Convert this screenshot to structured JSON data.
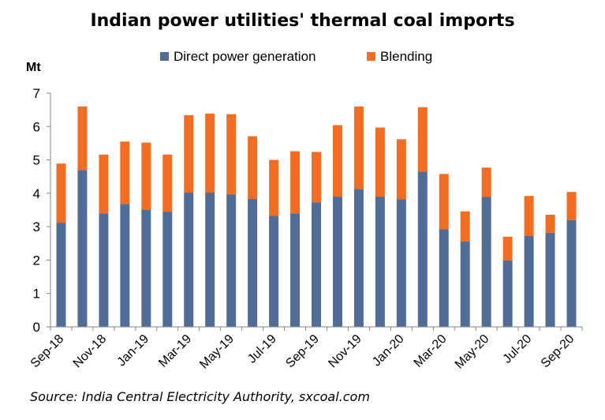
{
  "chart_data": {
    "type": "bar",
    "stacked": true,
    "title": "Indian power utilities'  thermal coal imports",
    "ylabel": "Mt",
    "xlabel": "",
    "ylim": [
      0,
      7
    ],
    "yticks": [
      0,
      1,
      2,
      3,
      4,
      5,
      6,
      7
    ],
    "grid": false,
    "legend_position": "top",
    "categories": [
      "Sep-18",
      "Oct-18",
      "Nov-18",
      "Dec-18",
      "Jan-19",
      "Feb-19",
      "Mar-19",
      "Apr-19",
      "May-19",
      "Jun-19",
      "Jul-19",
      "Aug-19",
      "Sep-19",
      "Oct-19",
      "Nov-19",
      "Dec-19",
      "Jan-20",
      "Feb-20",
      "Mar-20",
      "Apr-20",
      "May-20",
      "Jun-20",
      "Jul-20",
      "Aug-20",
      "Sep-20"
    ],
    "tick_labels": [
      "Sep-18",
      "Nov-18",
      "Jan-19",
      "Mar-19",
      "May-19",
      "Jul-19",
      "Sep-19",
      "Nov-19",
      "Jan-20",
      "Mar-20",
      "May-20",
      "Jul-20",
      "Sep-20"
    ],
    "series": [
      {
        "name": "Direct power generation",
        "color": "#4f6d96",
        "values": [
          3.12,
          4.7,
          3.4,
          3.68,
          3.5,
          3.45,
          4.02,
          4.02,
          3.97,
          3.83,
          3.33,
          3.4,
          3.73,
          3.9,
          4.13,
          3.9,
          3.82,
          4.65,
          2.92,
          2.56,
          3.89,
          1.99,
          2.72,
          2.82,
          3.2
        ]
      },
      {
        "name": "Blending",
        "color": "#f26d21",
        "values": [
          1.77,
          1.9,
          1.76,
          1.87,
          2.02,
          1.71,
          2.32,
          2.37,
          2.4,
          1.88,
          1.67,
          1.86,
          1.51,
          2.14,
          2.47,
          2.07,
          1.8,
          1.93,
          1.66,
          0.9,
          0.88,
          0.71,
          1.2,
          0.54,
          0.84
        ]
      }
    ]
  },
  "source": "Source: India Central Electricity Authority, sxcoal.com"
}
